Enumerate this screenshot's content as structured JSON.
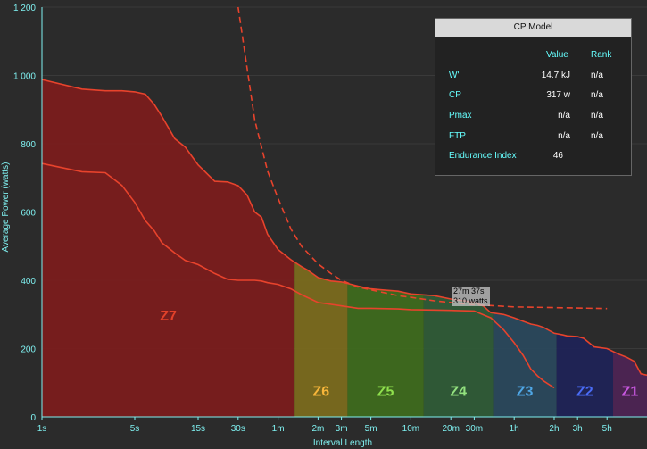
{
  "chart_data": {
    "type": "area",
    "xlabel": "Interval Length",
    "ylabel": "Average Power (watts)",
    "ylim": [
      0,
      1200
    ],
    "yticks": [
      "0",
      "200",
      "400",
      "600",
      "800",
      "1 000",
      "1 200"
    ],
    "xticks": [
      "1s",
      "5s",
      "15s",
      "30s",
      "1m",
      "2m",
      "3m",
      "5m",
      "10m",
      "20m",
      "30m",
      "1h",
      "2h",
      "3h",
      "5h"
    ],
    "xtick_seconds": [
      1,
      5,
      15,
      30,
      60,
      120,
      180,
      300,
      600,
      1200,
      1800,
      3600,
      7200,
      10800,
      18000
    ],
    "x_max_seconds": 36000,
    "series": [
      {
        "x": [
          1,
          2,
          3,
          4,
          5,
          6,
          7,
          8,
          10,
          12,
          15,
          20,
          25,
          30,
          35,
          40,
          45,
          50,
          60,
          75,
          90,
          100,
          120,
          150,
          180,
          240,
          300,
          360,
          480,
          600,
          900,
          1200,
          1500,
          1800,
          2100,
          2400,
          3000,
          3600,
          4200,
          4800,
          5400,
          6000,
          7200,
          8400,
          9000,
          10800,
          12000,
          14400,
          18000,
          21600,
          25200,
          28800,
          32400,
          36000
        ],
        "values": [
          988,
          960,
          955,
          955,
          952,
          945,
          915,
          880,
          815,
          790,
          738,
          690,
          688,
          677,
          650,
          600,
          585,
          535,
          490,
          460,
          440,
          430,
          408,
          398,
          395,
          383,
          375,
          372,
          368,
          360,
          355,
          345,
          340,
          335,
          325,
          305,
          300,
          290,
          280,
          272,
          268,
          262,
          245,
          240,
          237,
          235,
          230,
          205,
          200,
          185,
          175,
          163,
          126,
          122
        ]
      },
      {
        "x": [
          1,
          2,
          3,
          4,
          5,
          6,
          7,
          8,
          10,
          12,
          15,
          20,
          25,
          30,
          35,
          40,
          45,
          50,
          60,
          75,
          90,
          120,
          180,
          240,
          300,
          480,
          600,
          900,
          1200,
          1800,
          2400,
          3000,
          3600,
          4200,
          4800,
          5400,
          6000,
          7200
        ],
        "values": [
          742,
          718,
          715,
          678,
          628,
          575,
          545,
          510,
          480,
          458,
          446,
          420,
          403,
          400,
          400,
          400,
          398,
          393,
          388,
          375,
          358,
          335,
          325,
          318,
          318,
          316,
          314,
          313,
          312,
          310,
          290,
          255,
          217,
          180,
          140,
          120,
          105,
          85
        ]
      },
      {
        "x": [
          30,
          40,
          50,
          60,
          75,
          90,
          120,
          150,
          180,
          240,
          300,
          480,
          600,
          900,
          1200,
          1800,
          2400,
          3600,
          7200,
          14400,
          18000
        ],
        "values": [
          1200,
          870,
          720,
          640,
          550,
          500,
          448,
          420,
          400,
          380,
          372,
          355,
          350,
          340,
          335,
          328,
          326,
          322,
          320,
          318,
          317
        ]
      }
    ],
    "zones": [
      {
        "name": "Z7",
        "color": "#e2412a",
        "fill": "#7a1c1c",
        "x_end": 80
      },
      {
        "name": "Z6",
        "color": "#f7b53a",
        "fill": "#7a6a1e",
        "x_end": 200
      },
      {
        "name": "Z5",
        "color": "#8fe04d",
        "fill": "#3e6a1e",
        "x_end": 750
      },
      {
        "name": "Z4",
        "color": "#93e27f",
        "fill": "#2f5b37",
        "x_end": 2500
      },
      {
        "name": "Z3",
        "color": "#4fa7e6",
        "fill": "#2a485c",
        "x_end": 7500
      },
      {
        "name": "Z2",
        "color": "#4a6cf7",
        "fill": "#1f2356",
        "x_end": 20000
      },
      {
        "name": "Z1",
        "color": "#c858e0",
        "fill": "#4d2453",
        "x_end": 36000
      }
    ]
  },
  "cp_model": {
    "title": "CP Model",
    "col_value": "Value",
    "col_rank": "Rank",
    "rows": [
      {
        "label": "W'",
        "value": "14.7 kJ",
        "rank": "n/a"
      },
      {
        "label": "CP",
        "value": "317 w",
        "rank": "n/a"
      },
      {
        "label": "Pmax",
        "value": "n/a",
        "rank": "n/a"
      },
      {
        "label": "FTP",
        "value": "n/a",
        "rank": "n/a"
      },
      {
        "label": "Endurance Index",
        "value": "46",
        "rank": ""
      }
    ]
  },
  "annotation": {
    "line1": "27m 37s",
    "line2": "310 watts"
  }
}
